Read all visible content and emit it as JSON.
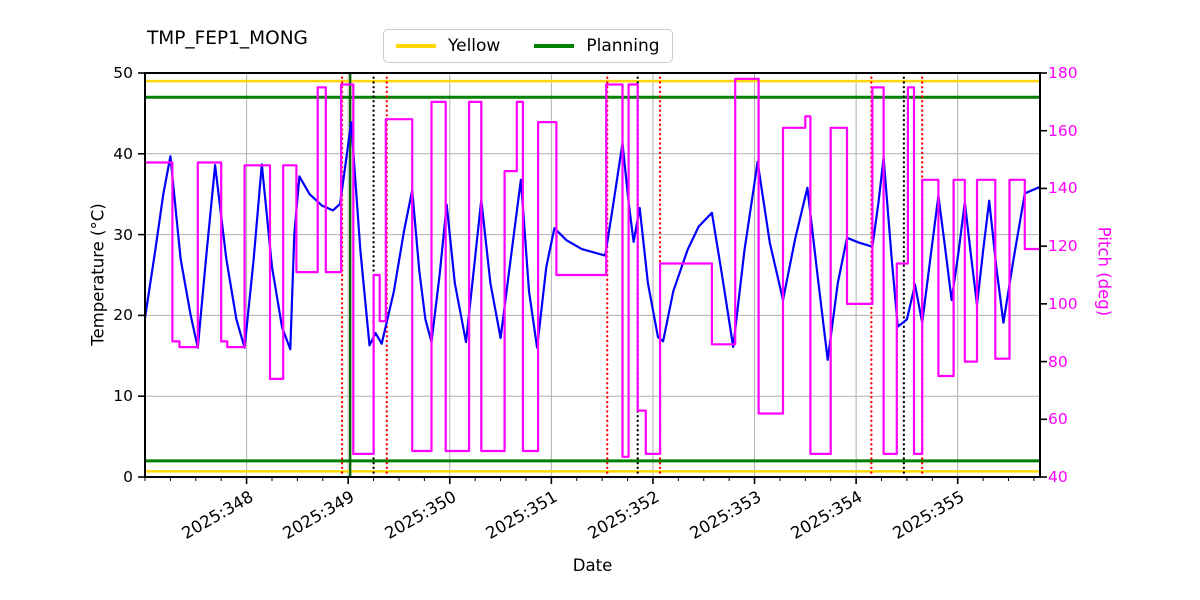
{
  "title": "TMP_FEP1_MONG",
  "legend": {
    "items": [
      {
        "label": "Yellow",
        "color": "#ffd700"
      },
      {
        "label": "Planning",
        "color": "#008000"
      }
    ]
  },
  "axes": {
    "x": {
      "label": "Date",
      "tick_labels": [
        "2025:348",
        "2025:349",
        "2025:350",
        "2025:351",
        "2025:352",
        "2025:353",
        "2025:354",
        "2025:355"
      ],
      "tick_days": [
        348,
        349,
        350,
        351,
        352,
        353,
        354,
        355
      ],
      "minor_step_days": 0.25
    },
    "y_left": {
      "label": "Temperature (°C)",
      "ticks": [
        0,
        10,
        20,
        30,
        40,
        50
      ],
      "color": "#000000"
    },
    "y_right": {
      "label": "Pitch (deg)",
      "ticks": [
        40,
        60,
        80,
        100,
        120,
        140,
        160,
        180
      ],
      "color": "#ff00ff"
    }
  },
  "chart_data": {
    "type": "line",
    "x_range": [
      347.0,
      355.81
    ],
    "y_left_range": [
      0,
      50
    ],
    "y_right_range": [
      40,
      180
    ],
    "grid": true,
    "grid_color": "#b0b0b0",
    "series": [
      {
        "name": "temperature",
        "color": "#0000ff",
        "axis": "left",
        "x": [
          347.0,
          347.1,
          347.18,
          347.25,
          347.35,
          347.45,
          347.52,
          347.6,
          347.69,
          347.8,
          347.9,
          347.98,
          348.07,
          348.15,
          348.25,
          348.35,
          348.43,
          348.47,
          348.52,
          348.62,
          348.74,
          348.85,
          348.92,
          349.03,
          349.12,
          349.21,
          349.27,
          349.33,
          349.45,
          349.55,
          349.63,
          349.7,
          349.76,
          349.82,
          349.9,
          349.97,
          350.05,
          350.16,
          350.24,
          350.31,
          350.4,
          350.5,
          350.6,
          350.7,
          350.78,
          350.86,
          350.95,
          351.03,
          351.15,
          351.3,
          351.53,
          351.6,
          351.7,
          351.76,
          351.81,
          351.87,
          351.95,
          352.05,
          352.1,
          352.2,
          352.34,
          352.45,
          352.58,
          352.68,
          352.79,
          352.9,
          353.03,
          353.15,
          353.28,
          353.4,
          353.52,
          353.62,
          353.72,
          353.82,
          353.91,
          354.03,
          354.16,
          354.22,
          354.27,
          354.35,
          354.41,
          354.5,
          354.58,
          354.65,
          354.73,
          354.81,
          354.88,
          354.94,
          355.01,
          355.07,
          355.13,
          355.19,
          355.25,
          355.31,
          355.38,
          355.45,
          355.55,
          355.66,
          355.81
        ],
        "y": [
          19.7,
          28.0,
          35.0,
          39.7,
          27.0,
          20.0,
          16.0,
          27.0,
          38.6,
          27.0,
          19.5,
          16.0,
          27.0,
          38.7,
          26.0,
          18.5,
          15.8,
          30.0,
          37.2,
          35.0,
          33.6,
          33.0,
          33.8,
          43.9,
          28.0,
          16.3,
          17.8,
          16.5,
          23.0,
          30.5,
          35.5,
          25.5,
          19.5,
          16.7,
          25.0,
          33.7,
          24.0,
          16.7,
          26.0,
          34.3,
          24.0,
          17.2,
          27.0,
          36.8,
          23.0,
          16.0,
          26.0,
          30.8,
          29.3,
          28.2,
          27.4,
          33.0,
          41.3,
          34.0,
          29.1,
          33.3,
          24.0,
          17.3,
          16.8,
          23.0,
          28.1,
          31.0,
          32.7,
          25.0,
          16.1,
          28.0,
          39.0,
          29.0,
          21.9,
          29.5,
          35.8,
          25.0,
          14.5,
          24.0,
          29.6,
          29.0,
          28.5,
          34.0,
          39.5,
          27.0,
          18.6,
          19.5,
          23.8,
          19.1,
          27.0,
          34.8,
          28.0,
          21.9,
          28.0,
          34.0,
          27.5,
          21.3,
          28.0,
          34.2,
          26.0,
          19.1,
          27.0,
          35.1,
          35.9
        ]
      },
      {
        "name": "pitch",
        "color": "#ff00ff",
        "axis": "right",
        "step": true,
        "x": [
          347.0,
          347.27,
          347.27,
          347.34,
          347.34,
          347.52,
          347.52,
          347.75,
          347.75,
          347.81,
          347.81,
          347.98,
          347.98,
          348.23,
          348.23,
          348.36,
          348.36,
          348.49,
          348.49,
          348.7,
          348.7,
          348.78,
          348.78,
          348.93,
          348.93,
          349.05,
          349.05,
          349.25,
          349.25,
          349.31,
          349.31,
          349.37,
          349.37,
          349.63,
          349.63,
          349.82,
          349.82,
          349.96,
          349.96,
          350.19,
          350.19,
          350.31,
          350.31,
          350.54,
          350.54,
          350.66,
          350.66,
          350.72,
          350.72,
          350.87,
          350.87,
          351.05,
          351.05,
          351.54,
          351.54,
          351.7,
          351.7,
          351.76,
          351.76,
          351.85,
          351.85,
          351.93,
          351.93,
          352.07,
          352.07,
          352.58,
          352.58,
          352.81,
          352.81,
          353.04,
          353.04,
          353.28,
          353.28,
          353.5,
          353.5,
          353.55,
          353.55,
          353.75,
          353.75,
          353.91,
          353.91,
          354.16,
          354.16,
          354.27,
          354.27,
          354.4,
          354.4,
          354.51,
          354.51,
          354.57,
          354.57,
          354.65,
          354.65,
          354.81,
          354.81,
          354.96,
          354.96,
          355.07,
          355.07,
          355.19,
          355.19,
          355.37,
          355.37,
          355.51,
          355.51,
          355.66,
          355.66,
          355.81
        ],
        "y": [
          149,
          149,
          87,
          87,
          85,
          85,
          149,
          149,
          87,
          87,
          85,
          85,
          148,
          148,
          74,
          74,
          148,
          148,
          111,
          111,
          175,
          175,
          111,
          111,
          176,
          176,
          48,
          48,
          110,
          110,
          94,
          94,
          164,
          164,
          49,
          49,
          170,
          170,
          49,
          49,
          170,
          170,
          49,
          49,
          146,
          146,
          170,
          170,
          49,
          49,
          163,
          163,
          110,
          110,
          176,
          176,
          47,
          47,
          176,
          176,
          63,
          63,
          48,
          48,
          114,
          114,
          86,
          86,
          178,
          178,
          62,
          62,
          161,
          161,
          165,
          165,
          48,
          48,
          161,
          161,
          100,
          100,
          175,
          175,
          48,
          48,
          114,
          114,
          175,
          175,
          48,
          48,
          143,
          143,
          75,
          75,
          143,
          143,
          80,
          80,
          143,
          143,
          81,
          81,
          143,
          143,
          119,
          119
        ]
      }
    ],
    "limit_lines": [
      {
        "name": "yellow-high",
        "y": 49.0,
        "color": "#ffd700",
        "width": 2.5
      },
      {
        "name": "yellow-low",
        "y": 0.7,
        "color": "#ffd700",
        "width": 2.5
      },
      {
        "name": "planning-high",
        "y": 47.0,
        "color": "#008000",
        "width": 3
      },
      {
        "name": "planning-low",
        "y": 2.0,
        "color": "#008000",
        "width": 3
      }
    ],
    "vlines": [
      {
        "x": 348.94,
        "color": "#ff0000",
        "style": "dotted",
        "name": "red-event-line"
      },
      {
        "x": 349.02,
        "color": "#006400",
        "style": "solid",
        "name": "green-event-line"
      },
      {
        "x": 349.25,
        "color": "#000000",
        "style": "dotted",
        "name": "black-event-line"
      },
      {
        "x": 349.38,
        "color": "#ff0000",
        "style": "dotted",
        "name": "red-event-line"
      },
      {
        "x": 351.55,
        "color": "#ff0000",
        "style": "dotted",
        "name": "red-event-line"
      },
      {
        "x": 351.85,
        "color": "#000000",
        "style": "dotted",
        "name": "black-event-line"
      },
      {
        "x": 352.07,
        "color": "#ff0000",
        "style": "dotted",
        "name": "red-event-line"
      },
      {
        "x": 354.15,
        "color": "#ff0000",
        "style": "dotted",
        "name": "red-event-line"
      },
      {
        "x": 354.47,
        "color": "#000000",
        "style": "dotted",
        "name": "black-event-line"
      },
      {
        "x": 354.65,
        "color": "#ff0000",
        "style": "dotted",
        "name": "red-event-line"
      }
    ]
  }
}
